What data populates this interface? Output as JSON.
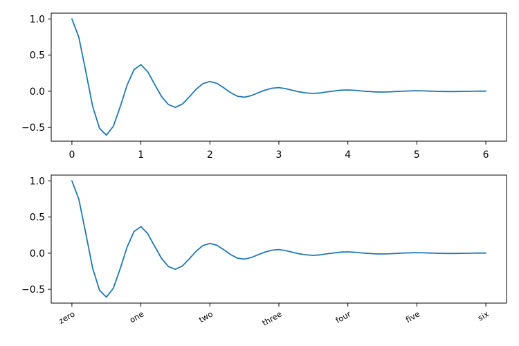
{
  "chart_data": [
    {
      "type": "line",
      "x": [
        0,
        0.1,
        0.2,
        0.3,
        0.4,
        0.5,
        0.6,
        0.7,
        0.8,
        0.9,
        1.0,
        1.1,
        1.2,
        1.3,
        1.4,
        1.5,
        1.6,
        1.7,
        1.8,
        1.9,
        2.0,
        2.1,
        2.2,
        2.3,
        2.4,
        2.5,
        2.6,
        2.7,
        2.8,
        2.9,
        3.0,
        3.1,
        3.2,
        3.3,
        3.4,
        3.5,
        3.6,
        3.7,
        3.8,
        3.9,
        4.0,
        4.1,
        4.2,
        4.3,
        4.4,
        4.5,
        4.6,
        4.7,
        4.8,
        4.9,
        5.0,
        5.1,
        5.2,
        5.3,
        5.4,
        5.5,
        5.6,
        5.7,
        5.8,
        5.9,
        6.0
      ],
      "series": [
        {
          "values": [
            1.0,
            0.748,
            0.279,
            -0.205,
            -0.512,
            -0.607,
            -0.485,
            -0.215,
            0.085,
            0.299,
            0.368,
            0.269,
            0.094,
            -0.074,
            -0.185,
            -0.223,
            -0.178,
            -0.08,
            0.027,
            0.106,
            0.135,
            0.11,
            0.049,
            -0.019,
            -0.069,
            -0.082,
            -0.06,
            -0.021,
            0.016,
            0.042,
            0.05,
            0.036,
            0.012,
            -0.009,
            -0.024,
            -0.03,
            -0.023,
            -0.008,
            0.004,
            0.015,
            0.018,
            0.013,
            0.004,
            -0.003,
            -0.009,
            -0.011,
            -0.008,
            -0.003,
            0.001,
            0.005,
            0.007,
            0.005,
            0.002,
            -0.001,
            -0.003,
            -0.004,
            -0.003,
            -0.001,
            0.0,
            0.002,
            0.002
          ],
          "color": "#1f77b4"
        }
      ],
      "xlim": [
        -0.3,
        6.3
      ],
      "ylim": [
        -0.69,
        1.08
      ],
      "xticks": [
        0,
        1,
        2,
        3,
        4,
        5,
        6
      ],
      "xtick_labels": [
        "0",
        "1",
        "2",
        "3",
        "4",
        "5",
        "6"
      ],
      "yticks": [
        -0.5,
        0.0,
        0.5,
        1.0
      ],
      "ytick_labels": [
        "−0.5",
        "0.0",
        "0.5",
        "1.0"
      ],
      "title": "",
      "xlabel": "",
      "ylabel": "",
      "grid": false
    },
    {
      "type": "line",
      "x": [
        0,
        0.1,
        0.2,
        0.3,
        0.4,
        0.5,
        0.6,
        0.7,
        0.8,
        0.9,
        1.0,
        1.1,
        1.2,
        1.3,
        1.4,
        1.5,
        1.6,
        1.7,
        1.8,
        1.9,
        2.0,
        2.1,
        2.2,
        2.3,
        2.4,
        2.5,
        2.6,
        2.7,
        2.8,
        2.9,
        3.0,
        3.1,
        3.2,
        3.3,
        3.4,
        3.5,
        3.6,
        3.7,
        3.8,
        3.9,
        4.0,
        4.1,
        4.2,
        4.3,
        4.4,
        4.5,
        4.6,
        4.7,
        4.8,
        4.9,
        5.0,
        5.1,
        5.2,
        5.3,
        5.4,
        5.5,
        5.6,
        5.7,
        5.8,
        5.9,
        6.0
      ],
      "series": [
        {
          "values": [
            1.0,
            0.748,
            0.279,
            -0.205,
            -0.512,
            -0.607,
            -0.485,
            -0.215,
            0.085,
            0.299,
            0.368,
            0.269,
            0.094,
            -0.074,
            -0.185,
            -0.223,
            -0.178,
            -0.08,
            0.027,
            0.106,
            0.135,
            0.11,
            0.049,
            -0.019,
            -0.069,
            -0.082,
            -0.06,
            -0.021,
            0.016,
            0.042,
            0.05,
            0.036,
            0.012,
            -0.009,
            -0.024,
            -0.03,
            -0.023,
            -0.008,
            0.004,
            0.015,
            0.018,
            0.013,
            0.004,
            -0.003,
            -0.009,
            -0.011,
            -0.008,
            -0.003,
            0.001,
            0.005,
            0.007,
            0.005,
            0.002,
            -0.001,
            -0.003,
            -0.004,
            -0.003,
            -0.001,
            0.0,
            0.002,
            0.002
          ],
          "color": "#1f77b4"
        }
      ],
      "xlim": [
        -0.3,
        6.3
      ],
      "ylim": [
        -0.69,
        1.08
      ],
      "xticks": [
        0,
        1,
        2,
        3,
        4,
        5,
        6
      ],
      "xtick_labels": [
        "zero",
        "one",
        "two",
        "three",
        "four",
        "five",
        "six"
      ],
      "xtick_rotation": 30,
      "yticks": [
        -0.5,
        0.0,
        0.5,
        1.0
      ],
      "ytick_labels": [
        "−0.5",
        "0.0",
        "0.5",
        "1.0"
      ],
      "title": "",
      "xlabel": "",
      "ylabel": "",
      "grid": false
    }
  ]
}
